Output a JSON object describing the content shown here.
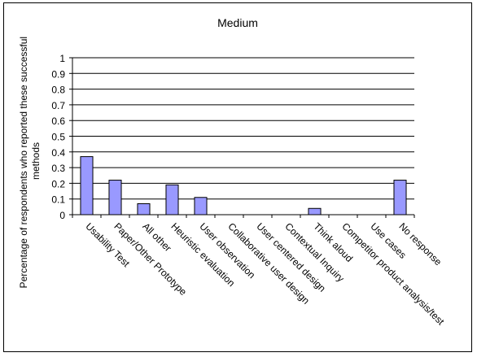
{
  "chart_data": {
    "type": "bar",
    "title": "Medium",
    "xlabel": "",
    "ylabel_lines": [
      "Percentage of respondents who reported these successful",
      "methods"
    ],
    "ylim": [
      0,
      1
    ],
    "yticks": [
      "0",
      "0.1",
      "0.2",
      "0.3",
      "0.4",
      "0.5",
      "0.6",
      "0.7",
      "0.8",
      "0.9",
      "1"
    ],
    "grid": true,
    "legend": "none",
    "bar_color": "#9999ff",
    "categories": [
      "Usability Test",
      "Paper/Other Prototype",
      "All other",
      "Heuristic evaluation",
      "User observation",
      "Collaborative user design",
      "User centered design",
      "Contextual Inquiry",
      "Think aloud",
      "Competitor product analysis/test",
      "Use cases",
      "No response"
    ],
    "values": [
      0.37,
      0.22,
      0.07,
      0.19,
      0.11,
      0,
      0,
      0,
      0.04,
      0,
      0,
      0.22
    ]
  }
}
